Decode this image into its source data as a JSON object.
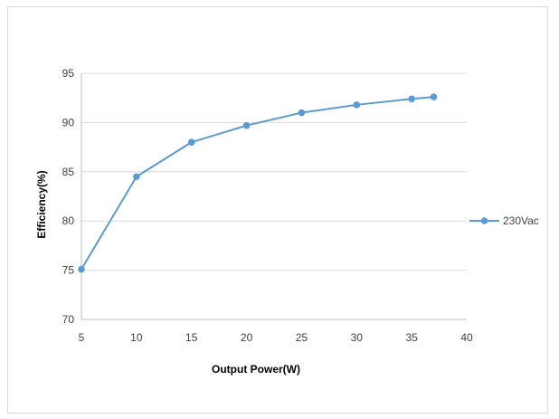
{
  "chart_data": {
    "type": "line",
    "xlabel": "Output  Power(W)",
    "ylabel": "Efficiency(%)",
    "xlim": [
      5,
      40
    ],
    "ylim": [
      70,
      95
    ],
    "x_ticks": [
      5,
      10,
      15,
      20,
      25,
      30,
      35,
      40
    ],
    "y_ticks": [
      70,
      75,
      80,
      85,
      90,
      95
    ],
    "grid": "horizontal",
    "legend_position": "right",
    "series": [
      {
        "name": "230Vac",
        "color": "#5b9bd5",
        "x": [
          5,
          10,
          15,
          20,
          25,
          30,
          35,
          37
        ],
        "y": [
          75.1,
          84.5,
          88.0,
          89.7,
          91.0,
          91.8,
          92.4,
          92.6
        ]
      }
    ]
  }
}
